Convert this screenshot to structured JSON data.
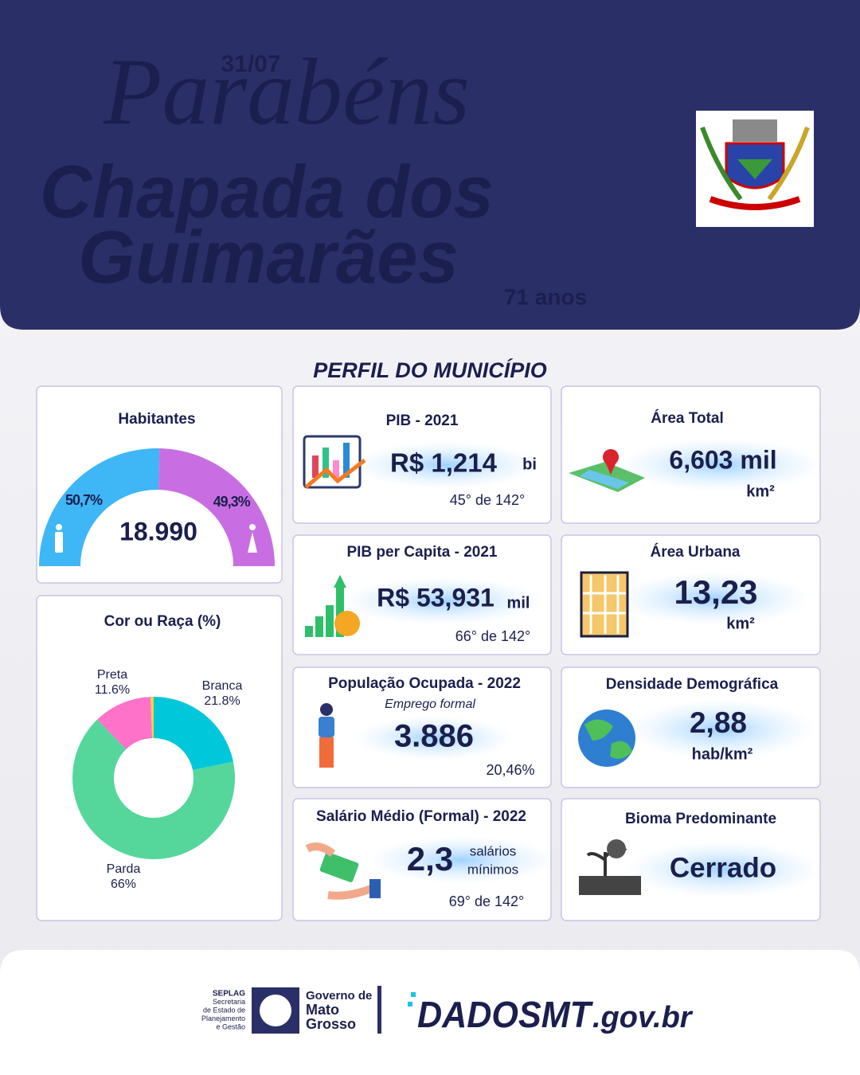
{
  "header": {
    "date": "31/07",
    "greeting": "Parabéns",
    "city_lines": [
      "Chapada dos",
      "Guimarães"
    ],
    "age": "71 anos"
  },
  "section_title": "PERFIL DO MUNICÍPIO",
  "habitantes": {
    "title": "Habitantes",
    "total": "18.990",
    "segments": [
      {
        "value": 50.7,
        "label": "50,7%",
        "color": "#3fb6f6"
      },
      {
        "value": 49.3,
        "label": "49,3%",
        "color": "#c86ee2"
      }
    ]
  },
  "cor_raca": {
    "title": "Cor ou Raça (%)",
    "segments": [
      {
        "name": "Branca",
        "value": 21.8,
        "label": "21.8%",
        "color": "#00c8da"
      },
      {
        "name": "Parda",
        "value": 66,
        "label": "66%",
        "color": "#55d79c"
      },
      {
        "name": "Preta",
        "value": 11.6,
        "label": "11.6%",
        "color": "#ff72c9"
      },
      {
        "name": null,
        "value": 0.6,
        "color": "#f3d33c"
      }
    ]
  },
  "cards": [
    {
      "title": "PIB - 2021",
      "value": "R$ 1,214",
      "unit": "bi",
      "rank": "45° de 142°"
    },
    {
      "title": "PIB per Capita - 2021",
      "value": "R$ 53,931",
      "unit": "mil",
      "rank": "66° de 142°"
    },
    {
      "title": "População  Ocupada - 2022",
      "subtitle": "Emprego formal",
      "value": "3.886",
      "rank": "20,46%"
    },
    {
      "title": "Salário Médio (Formal) - 2022",
      "value": "2,3",
      "unit": [
        "salários",
        "mínimos"
      ],
      "rank": "69° de 142°"
    },
    {
      "title": "Área Total",
      "value": "6,603 mil",
      "unit": "km²"
    },
    {
      "title": "Área Urbana",
      "value": "13,23",
      "unit": "km²"
    },
    {
      "title": "Densidade Demográfica",
      "value": "2,88",
      "unit": "hab/km²"
    },
    {
      "title": "Bioma Predominante",
      "value": "Cerrado"
    }
  ],
  "footer": {
    "seplag": [
      "SEPLAG",
      "Secretaria",
      "de Estado de",
      "Planejamento",
      "e Gestão"
    ],
    "governo": [
      "Governo de",
      "Mato",
      "Grosso"
    ],
    "dados": "DADOSMT",
    "domain": ".gov.br"
  }
}
